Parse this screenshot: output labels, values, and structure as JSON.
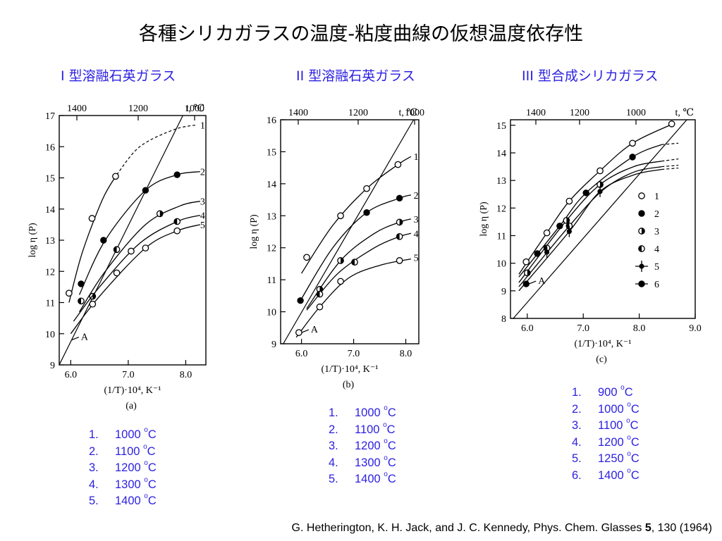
{
  "slide_title": "各種シリカガラスの温度-粘度曲線の仮想温度依存性",
  "panels": [
    {
      "heading": "I 型溶融石英ガラス",
      "caption": "(a)",
      "legend_list": [
        {
          "num": "1.",
          "temp": "1000 ",
          "unit": "C"
        },
        {
          "num": "2.",
          "temp": "1100 ",
          "unit": "C"
        },
        {
          "num": "3.",
          "temp": "1200 ",
          "unit": "C"
        },
        {
          "num": "4.",
          "temp": "1300 ",
          "unit": "C"
        },
        {
          "num": "5.",
          "temp": "1400 ",
          "unit": "C"
        }
      ]
    },
    {
      "heading": "II 型溶融石英ガラス",
      "caption": "(b)",
      "legend_list": [
        {
          "num": "1.",
          "temp": "1000 ",
          "unit": "C"
        },
        {
          "num": "2.",
          "temp": "1100 ",
          "unit": "C"
        },
        {
          "num": "3.",
          "temp": "1200 ",
          "unit": "C"
        },
        {
          "num": "4.",
          "temp": "1300 ",
          "unit": "C"
        },
        {
          "num": "5.",
          "temp": "1400 ",
          "unit": "C"
        }
      ]
    },
    {
      "heading": "III 型合成シリカガラス",
      "caption": "(c)",
      "legend_list": [
        {
          "num": "1.",
          "temp": "900 ",
          "unit": "C"
        },
        {
          "num": "2.",
          "temp": "1000 ",
          "unit": "C"
        },
        {
          "num": "3.",
          "temp": "1100 ",
          "unit": "C"
        },
        {
          "num": "4.",
          "temp": "1200 ",
          "unit": "C"
        },
        {
          "num": "5.",
          "temp": "1250 ",
          "unit": "C"
        },
        {
          "num": "6.",
          "temp": "1400 ",
          "unit": "C"
        }
      ]
    }
  ],
  "citation": {
    "text": "G. Hetherington, K. H. Jack, and J. C. Kennedy, Phys. Chem. Glasses ",
    "volume": "5",
    "rest": ", 130 (1964)"
  },
  "colors": {
    "blue_text": "#2b1fe0",
    "ink": "#000000"
  },
  "chart_data": [
    {
      "type": "scatter",
      "caption": "(a)",
      "xlabel": "(1/T)·10⁴, K⁻¹",
      "ylabel": "log η (P)",
      "top_axis_label": "t, ℃",
      "top_axis_ticks": [
        "1400",
        "1200",
        "1000"
      ],
      "xlim": [
        5.8,
        8.35
      ],
      "ylim": [
        9,
        17
      ],
      "x_ticks": [
        6.0,
        7.0,
        8.0
      ],
      "y_ticks": [
        9,
        10,
        11,
        12,
        13,
        14,
        15,
        16,
        17
      ],
      "annotations": [
        "A"
      ],
      "series": [
        {
          "name": "1",
          "marker": "open",
          "x": [
            5.97,
            6.37,
            6.78
          ],
          "y": [
            11.3,
            13.7,
            15.05
          ],
          "dashed_extension": true
        },
        {
          "name": "2",
          "marker": "filled",
          "x": [
            6.18,
            6.57,
            7.3,
            7.85
          ],
          "y": [
            11.6,
            13.0,
            14.6,
            15.1
          ]
        },
        {
          "name": "3",
          "marker": "half",
          "x": [
            6.38,
            7.55
          ],
          "y": [
            11.2,
            13.85
          ]
        },
        {
          "name": "4",
          "marker": "half",
          "x": [
            6.18,
            6.8,
            7.85
          ],
          "y": [
            11.05,
            12.7,
            13.6
          ]
        },
        {
          "name": "5",
          "marker": "open",
          "x": [
            6.38,
            6.8,
            7.05,
            7.3,
            7.85
          ],
          "y": [
            10.95,
            11.95,
            12.65,
            12.75,
            13.3
          ]
        }
      ]
    },
    {
      "type": "scatter",
      "caption": "(b)",
      "xlabel": "(1/T)·10⁴, K⁻¹",
      "ylabel": "log η (P)",
      "top_axis_label": "t, ℃",
      "top_axis_ticks": [
        "1400",
        "1200",
        "1000"
      ],
      "xlim": [
        5.6,
        8.25
      ],
      "ylim": [
        9,
        16
      ],
      "x_ticks": [
        6.0,
        7.0,
        8.0
      ],
      "y_ticks": [
        9,
        10,
        11,
        12,
        13,
        14,
        15,
        16
      ],
      "annotations": [
        "A"
      ],
      "series": [
        {
          "name": "1",
          "marker": "open",
          "x": [
            6.1,
            6.75,
            7.25,
            7.85
          ],
          "y": [
            11.7,
            13.0,
            13.85,
            14.6
          ]
        },
        {
          "name": "2",
          "marker": "filled",
          "x": [
            5.98,
            7.25,
            7.88
          ],
          "y": [
            10.35,
            13.1,
            13.55
          ]
        },
        {
          "name": "3",
          "marker": "half",
          "x": [
            6.35,
            6.75,
            7.88
          ],
          "y": [
            10.7,
            11.6,
            12.8
          ]
        },
        {
          "name": "4",
          "marker": "half",
          "x": [
            6.35,
            7.02,
            7.88
          ],
          "y": [
            10.55,
            11.55,
            12.35
          ]
        },
        {
          "name": "5",
          "marker": "open",
          "x": [
            5.95,
            6.35,
            6.75,
            7.88
          ],
          "y": [
            9.35,
            10.15,
            10.95,
            11.6
          ]
        }
      ]
    },
    {
      "type": "scatter",
      "caption": "(c)",
      "xlabel": "(1/T)·10⁴, K⁻¹",
      "ylabel": "log η (P)",
      "top_axis_label": "t, ℃",
      "top_axis_ticks": [
        "1400",
        "1200",
        "1000"
      ],
      "xlim": [
        5.7,
        9.0
      ],
      "ylim": [
        8,
        15.2
      ],
      "x_ticks": [
        6.0,
        7.0,
        8.0,
        9.0
      ],
      "y_ticks": [
        8,
        9,
        10,
        11,
        12,
        13,
        14,
        15
      ],
      "annotations": [
        "A"
      ],
      "legend_position": "right",
      "series": [
        {
          "name": "1",
          "marker": "open",
          "x": [
            5.98,
            6.35,
            6.75,
            7.3,
            7.88,
            8.58
          ],
          "y": [
            10.05,
            11.1,
            12.25,
            13.35,
            14.35,
            15.05
          ]
        },
        {
          "name": "2",
          "marker": "filled",
          "x": [
            6.18,
            6.58,
            7.05,
            7.88
          ],
          "y": [
            10.35,
            11.35,
            12.55,
            13.85
          ]
        },
        {
          "name": "3",
          "marker": "half",
          "x": [
            6.0,
            6.7,
            7.3
          ],
          "y": [
            9.65,
            11.55,
            12.85
          ]
        },
        {
          "name": "4",
          "marker": "half",
          "x": [
            6.35,
            6.75
          ],
          "y": [
            10.55,
            11.35
          ]
        },
        {
          "name": "5",
          "marker": "errbar",
          "x": [
            6.35,
            6.75,
            7.3
          ],
          "y": [
            10.4,
            11.15,
            12.6
          ]
        },
        {
          "name": "6",
          "marker": "filled",
          "x": [
            5.98
          ],
          "y": [
            9.25
          ]
        }
      ]
    }
  ]
}
